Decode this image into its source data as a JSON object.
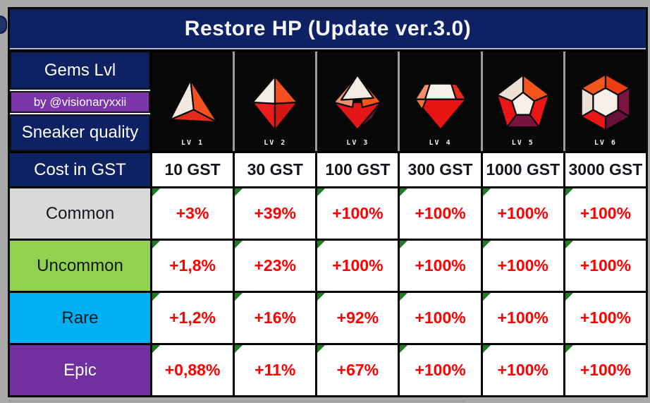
{
  "title": "Restore HP (Update ver.3.0)",
  "header": {
    "gems_label": "Gems Lvl",
    "byline": "by @visionaryxxii",
    "quality_label": "Sneaker quality",
    "cost_label": "Cost in GST"
  },
  "gems": [
    {
      "level": "LV 1",
      "icon": "gem-lv1-icon"
    },
    {
      "level": "LV 2",
      "icon": "gem-lv2-icon"
    },
    {
      "level": "LV 3",
      "icon": "gem-lv3-icon"
    },
    {
      "level": "LV 4",
      "icon": "gem-lv4-icon"
    },
    {
      "level": "LV 5",
      "icon": "gem-lv5-icon"
    },
    {
      "level": "LV 6",
      "icon": "gem-lv6-icon"
    }
  ],
  "costs": [
    "10 GST",
    "30 GST",
    "100 GST",
    "300 GST",
    "1000 GST",
    "3000 GST"
  ],
  "rows": [
    {
      "label": "Common",
      "color": "#d9d9d9",
      "text_color": "#16161e",
      "values": [
        "+3%",
        "+39%",
        "+100%",
        "+100%",
        "+100%",
        "+100%"
      ]
    },
    {
      "label": "Uncommon",
      "color": "#92d050",
      "text_color": "#101810",
      "values": [
        "+1,8%",
        "+23%",
        "+100%",
        "+100%",
        "+100%",
        "+100%"
      ]
    },
    {
      "label": "Rare",
      "color": "#00b0f0",
      "text_color": "#0d1b24",
      "values": [
        "+1,2%",
        "+16%",
        "+92%",
        "+100%",
        "+100%",
        "+100%"
      ]
    },
    {
      "label": "Epic",
      "color": "#7030a0",
      "text_color": "#ffffff",
      "values": [
        "+0,88%",
        "+11%",
        "+67%",
        "+100%",
        "+100%",
        "+100%"
      ]
    }
  ],
  "colors": {
    "navy": "#0e2263",
    "byline_purple": "#7a35a8",
    "value_red": "#ff0000",
    "corner_green": "#1e7d21",
    "page_bg": "#a9a9a9",
    "gem_cell_bg": "#070707",
    "table_border": "#000000"
  },
  "chart_data": {
    "type": "table",
    "title": "Restore HP (Update ver.3.0)",
    "columns": [
      "Gems Lvl / Sneaker quality",
      "LV 1",
      "LV 2",
      "LV 3",
      "LV 4",
      "LV 5",
      "LV 6"
    ],
    "rows": [
      [
        "Cost in GST",
        "10 GST",
        "30 GST",
        "100 GST",
        "300 GST",
        "1000 GST",
        "3000 GST"
      ],
      [
        "Common",
        "+3%",
        "+39%",
        "+100%",
        "+100%",
        "+100%",
        "+100%"
      ],
      [
        "Uncommon",
        "+1,8%",
        "+23%",
        "+100%",
        "+100%",
        "+100%",
        "+100%"
      ],
      [
        "Rare",
        "+1,2%",
        "+16%",
        "+92%",
        "+100%",
        "+100%",
        "+100%"
      ],
      [
        "Epic",
        "+0,88%",
        "+11%",
        "+67%",
        "+100%",
        "+100%",
        "+100%"
      ]
    ],
    "notes": "by @visionaryxxii"
  }
}
